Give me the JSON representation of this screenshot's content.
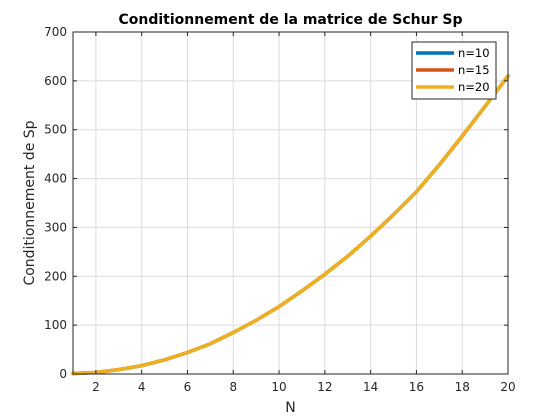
{
  "chart_data": {
    "type": "line",
    "title": "Conditionnement de la matrice de Schur Sp",
    "xlabel": "N",
    "ylabel": "Conditionnement de Sp",
    "xlim": [
      1,
      20
    ],
    "ylim": [
      0,
      700
    ],
    "xticks": [
      2,
      4,
      6,
      8,
      10,
      12,
      14,
      16,
      18,
      20
    ],
    "yticks": [
      0,
      100,
      200,
      300,
      400,
      500,
      600,
      700
    ],
    "grid": true,
    "legend_position": "top-right",
    "x": [
      1,
      2,
      3,
      4,
      5,
      6,
      7,
      8,
      9,
      10,
      11,
      12,
      13,
      14,
      15,
      16,
      17,
      18,
      19,
      20
    ],
    "series": [
      {
        "name": "n=10",
        "color": "#0072BD",
        "values": [
          1,
          3,
          9,
          17,
          29,
          44,
          62,
          85,
          110,
          138,
          170,
          204,
          241,
          282,
          326,
          373,
          428,
          487,
          548,
          610
        ]
      },
      {
        "name": "n=15",
        "color": "#D95319",
        "values": [
          1,
          3,
          9,
          17,
          29,
          44,
          62,
          85,
          110,
          138,
          170,
          204,
          241,
          282,
          326,
          373,
          428,
          487,
          548,
          610
        ]
      },
      {
        "name": "n=20",
        "color": "#EDB120",
        "values": [
          1,
          3,
          9,
          17,
          29,
          44,
          62,
          85,
          110,
          138,
          170,
          204,
          241,
          282,
          326,
          373,
          428,
          487,
          548,
          610
        ]
      }
    ]
  }
}
